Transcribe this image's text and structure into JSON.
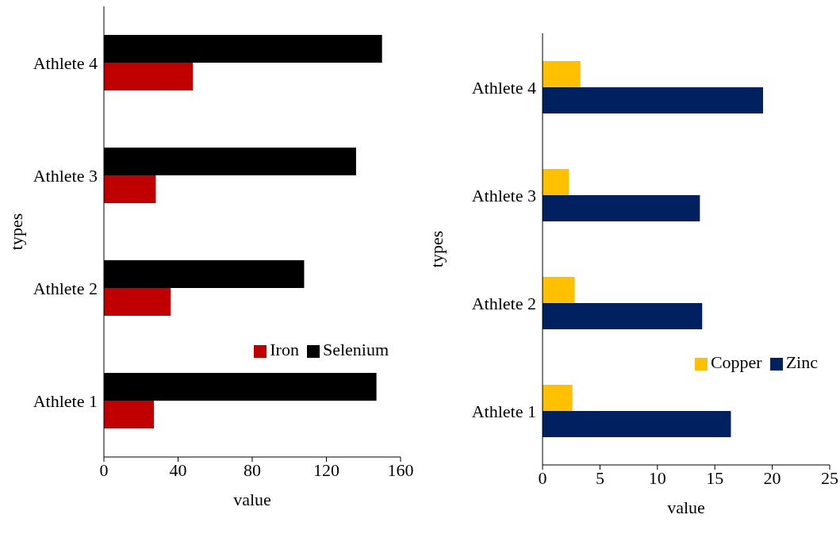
{
  "chart_data": [
    {
      "type": "bar",
      "orientation": "horizontal",
      "categories": [
        "Athlete 4",
        "Athlete 3",
        "Athlete 2",
        "Athlete 1"
      ],
      "xlabel": "value",
      "ylabel": "types",
      "xlim": [
        0,
        160
      ],
      "xticks": [
        0,
        40,
        80,
        120,
        160
      ],
      "legend": "bottom right",
      "grid": false,
      "series": [
        {
          "name": "Selenium",
          "color": "#000000",
          "values": [
            150,
            136,
            108,
            147
          ]
        },
        {
          "name": "Iron",
          "color": "#c00000",
          "values": [
            48,
            28,
            36,
            27
          ]
        }
      ]
    },
    {
      "type": "bar",
      "orientation": "horizontal",
      "categories": [
        "Athlete 4",
        "Athlete 3",
        "Athlete 2",
        "Athlete 1"
      ],
      "xlabel": "value",
      "ylabel": "types",
      "xlim": [
        0,
        25
      ],
      "xticks": [
        0,
        5,
        10,
        15,
        20,
        25
      ],
      "legend": "bottom right",
      "grid": false,
      "series": [
        {
          "name": "Copper",
          "color": "#ffc000",
          "values": [
            3.3,
            2.3,
            2.8,
            2.6
          ]
        },
        {
          "name": "Zinc",
          "color": "#002060",
          "values": [
            19.2,
            13.7,
            13.9,
            16.4
          ]
        }
      ]
    }
  ]
}
